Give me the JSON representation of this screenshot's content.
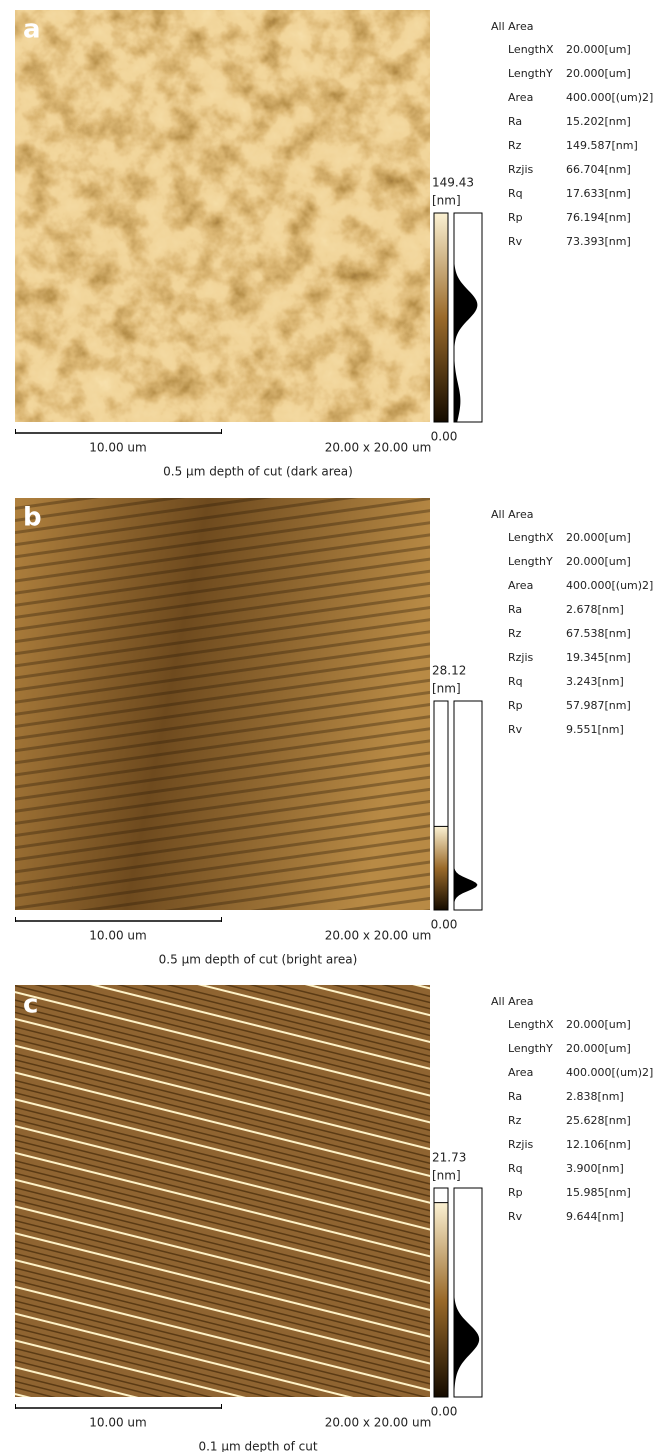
{
  "panels": [
    {
      "label": "a",
      "scale_bar": "10.00 um",
      "size": "20.00 x 20.00 um",
      "caption": "0.5 μm depth of cut   (dark area)",
      "colorbar": {
        "max": "149.43",
        "unit": "[nm]",
        "min": "0.00"
      },
      "stats": {
        "title": "All Area",
        "rows": [
          [
            "LengthX",
            "20.000[um]"
          ],
          [
            "LengthY",
            "20.000[um]"
          ],
          [
            "Area",
            "400.000[(um)2]"
          ],
          [
            "Ra",
            "15.202[nm]"
          ],
          [
            "Rz",
            "149.587[nm]"
          ],
          [
            "Rzjis",
            "66.704[nm]"
          ],
          [
            "Rq",
            "17.633[nm]"
          ],
          [
            "Rp",
            "76.194[nm]"
          ],
          [
            "Rv",
            "73.393[nm]"
          ]
        ]
      }
    },
    {
      "label": "b",
      "scale_bar": "10.00 um",
      "size": "20.00 x 20.00 um",
      "caption": "0.5 μm depth of cut   (bright area)",
      "colorbar": {
        "max": "28.12",
        "unit": "[nm]",
        "min": "0.00"
      },
      "stats": {
        "title": "All Area",
        "rows": [
          [
            "LengthX",
            "20.000[um]"
          ],
          [
            "LengthY",
            "20.000[um]"
          ],
          [
            "Area",
            "400.000[(um)2]"
          ],
          [
            "Ra",
            "2.678[nm]"
          ],
          [
            "Rz",
            "67.538[nm]"
          ],
          [
            "Rzjis",
            "19.345[nm]"
          ],
          [
            "Rq",
            "3.243[nm]"
          ],
          [
            "Rp",
            "57.987[nm]"
          ],
          [
            "Rv",
            "9.551[nm]"
          ]
        ]
      }
    },
    {
      "label": "c",
      "scale_bar": "10.00 um",
      "size": "20.00 x 20.00 um",
      "caption": "0.1 μm depth of cut",
      "colorbar": {
        "max": "21.73",
        "unit": "[nm]",
        "min": "0.00"
      },
      "stats": {
        "title": "All Area",
        "rows": [
          [
            "LengthX",
            "20.000[um]"
          ],
          [
            "LengthY",
            "20.000[um]"
          ],
          [
            "Area",
            "400.000[(um)2]"
          ],
          [
            "Ra",
            "2.838[nm]"
          ],
          [
            "Rz",
            "25.628[nm]"
          ],
          [
            "Rzjis",
            "12.106[nm]"
          ],
          [
            "Rq",
            "3.900[nm]"
          ],
          [
            "Rp",
            "15.985[nm]"
          ],
          [
            "Rv",
            "9.644[nm]"
          ]
        ]
      }
    }
  ]
}
